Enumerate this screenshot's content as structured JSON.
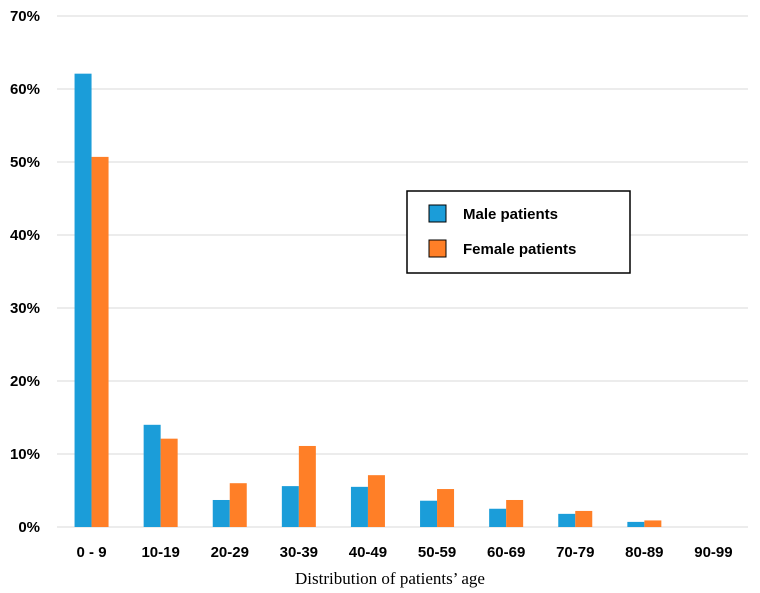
{
  "chart_data": {
    "type": "bar",
    "title": "",
    "xlabel": "Distribution of patients’ age",
    "ylabel": "",
    "ylim": [
      0,
      70
    ],
    "y_ticks": [
      "0%",
      "10%",
      "20%",
      "30%",
      "40%",
      "50%",
      "60%",
      "70%"
    ],
    "y_tick_values": [
      0,
      10,
      20,
      30,
      40,
      50,
      60,
      70
    ],
    "categories": [
      "0 - 9",
      "10-19",
      "20-29",
      "30-39",
      "40-49",
      "50-59",
      "60-69",
      "70-79",
      "80-89",
      "90-99"
    ],
    "series": [
      {
        "name": "Male patients",
        "color": "#1B9DD9",
        "values": [
          62.1,
          14.0,
          3.7,
          5.6,
          5.5,
          3.6,
          2.5,
          1.8,
          0.7,
          0.0
        ]
      },
      {
        "name": "Female patients",
        "color": "#FF7F27",
        "values": [
          50.7,
          12.1,
          6.0,
          11.1,
          7.1,
          5.2,
          3.7,
          2.2,
          0.9,
          0.0
        ]
      }
    ],
    "grid": true,
    "legend_position": "center-right"
  }
}
